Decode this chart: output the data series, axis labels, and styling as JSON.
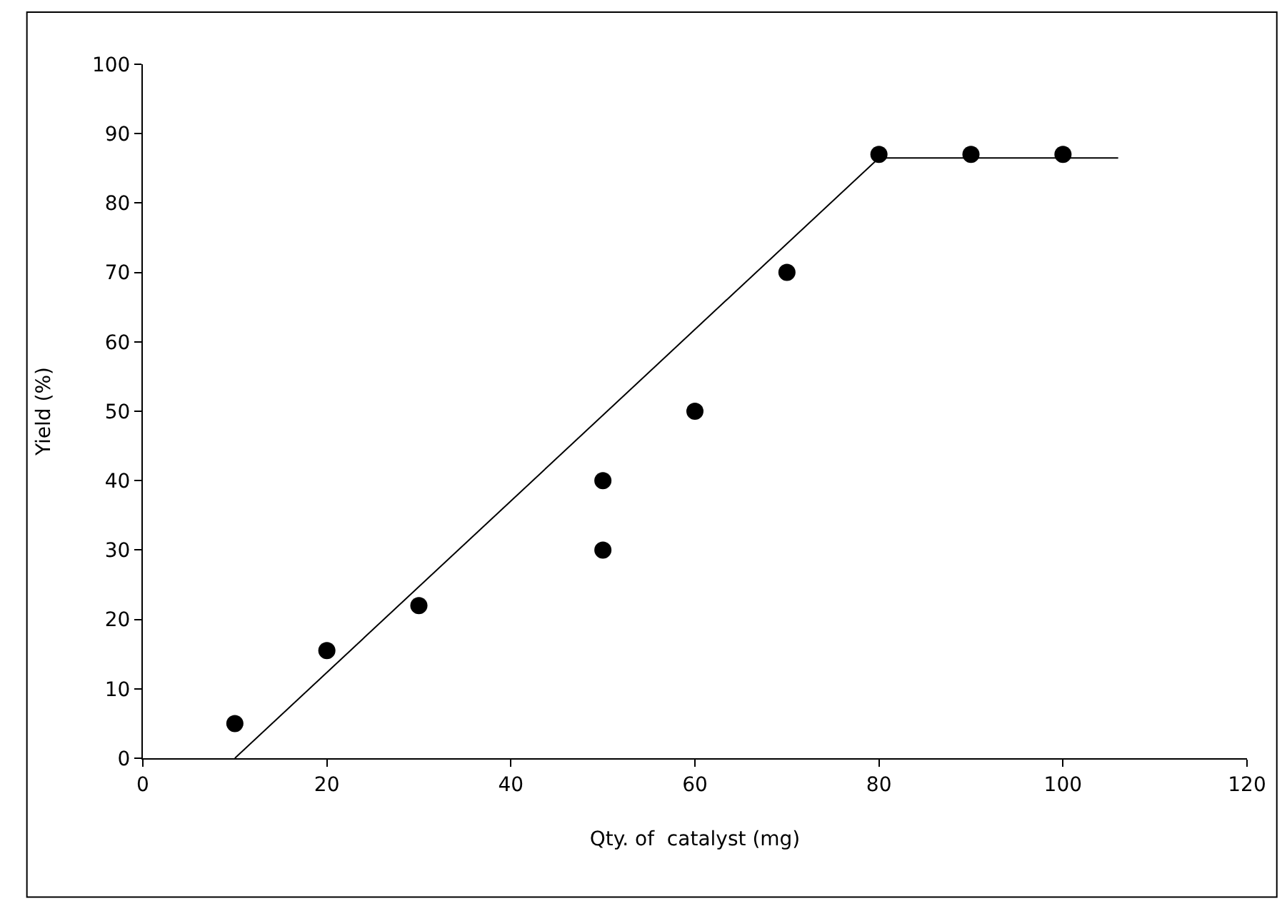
{
  "chart_data": {
    "type": "scatter",
    "xlabel": "Qty. of  catalyst (mg)",
    "ylabel": "Yield (%)",
    "x": [
      10,
      20,
      30,
      50,
      50,
      60,
      70,
      80,
      90,
      100
    ],
    "series": [
      {
        "color": "#000000",
        "marker": "circle",
        "values": [
          5,
          15.5,
          22,
          40,
          30,
          50,
          70,
          87,
          87,
          87
        ]
      },
      {
        "type": "line",
        "color": "#000000",
        "line_style": "solid",
        "x": [
          10,
          80,
          106
        ],
        "values": [
          0,
          86.5,
          86.5
        ]
      }
    ],
    "xlim": [
      0,
      120
    ],
    "xticks": [
      0,
      20,
      40,
      60,
      80,
      100,
      120
    ],
    "ylim": [
      0,
      100
    ],
    "yticks": [
      0,
      10,
      20,
      30,
      40,
      50,
      60,
      70,
      80,
      90,
      100
    ]
  }
}
